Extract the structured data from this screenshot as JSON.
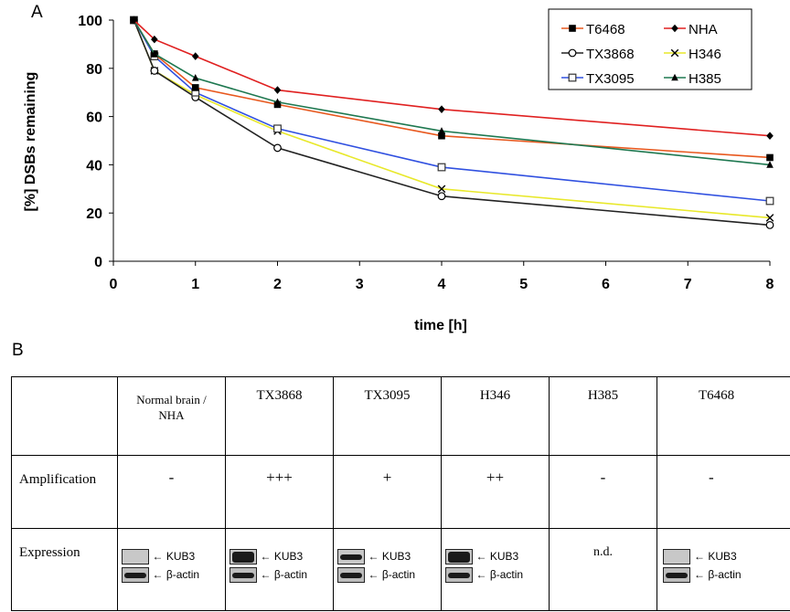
{
  "panel_a": {
    "label": "A"
  },
  "panel_b": {
    "label": "B"
  },
  "chart_data": {
    "type": "line",
    "xlabel": "time [h]",
    "ylabel": "[%] DSBs remaining",
    "xlim": [
      0,
      8
    ],
    "ylim": [
      0,
      100
    ],
    "xticks": [
      0,
      1,
      2,
      3,
      4,
      5,
      6,
      7,
      8
    ],
    "yticks": [
      0,
      20,
      40,
      60,
      80,
      100
    ],
    "grid": false,
    "legend_position": "top-right",
    "x": [
      0.25,
      0.5,
      1,
      2,
      4,
      8
    ],
    "series": [
      {
        "name": "T6468",
        "color": "#e8581e",
        "marker": "square-filled",
        "values": [
          100,
          86,
          72,
          65,
          52,
          43
        ]
      },
      {
        "name": "NHA",
        "color": "#e02020",
        "marker": "diamond-filled",
        "values": [
          100,
          92,
          85,
          71,
          63,
          52
        ]
      },
      {
        "name": "TX3868",
        "color": "#222222",
        "marker": "circle-open",
        "values": [
          100,
          79,
          68,
          47,
          27,
          15
        ]
      },
      {
        "name": "H346",
        "color": "#e8e82a",
        "marker": "x",
        "values": [
          100,
          79,
          69,
          54,
          30,
          18
        ]
      },
      {
        "name": "TX3095",
        "color": "#3050e0",
        "marker": "square-open",
        "values": [
          100,
          85,
          70,
          55,
          39,
          25
        ]
      },
      {
        "name": "H385",
        "color": "#1e7850",
        "marker": "triangle-filled",
        "values": [
          100,
          86,
          76,
          66,
          54,
          40
        ]
      }
    ]
  },
  "table": {
    "headers": [
      "",
      "Normal brain / NHA",
      "TX3868",
      "TX3095",
      "H346",
      "H385",
      "T6468"
    ],
    "amplification": {
      "label": "Amplification",
      "values": [
        "-",
        "+++",
        "+",
        "++",
        "-",
        "-"
      ]
    },
    "expression": {
      "label": "Expression",
      "protein_label": "KUB3",
      "control_label": "β-actin",
      "not_determined": "n.d."
    }
  }
}
